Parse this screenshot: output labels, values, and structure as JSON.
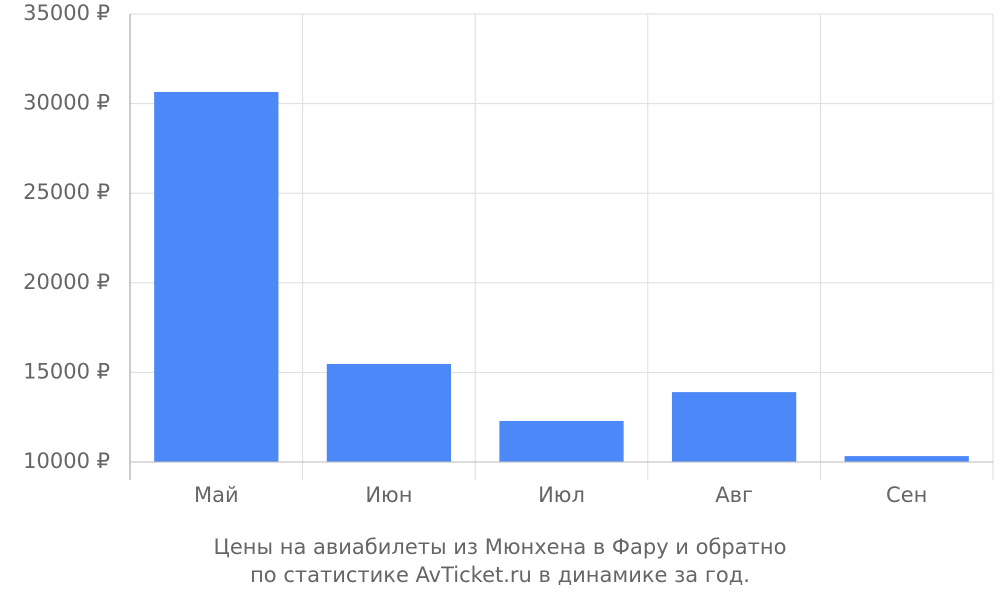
{
  "chart_data": {
    "type": "bar",
    "categories": [
      "Май",
      "Июн",
      "Июл",
      "Авг",
      "Сен"
    ],
    "values": [
      30650,
      15470,
      12290,
      13900,
      10330
    ],
    "color": "#4d88f9",
    "ylim": [
      10000,
      35000
    ],
    "yticks": [
      {
        "value": 10000,
        "label": "10000 ₽"
      },
      {
        "value": 15000,
        "label": "15000 ₽"
      },
      {
        "value": 20000,
        "label": "20000 ₽"
      },
      {
        "value": 25000,
        "label": "25000 ₽"
      },
      {
        "value": 30000,
        "label": "30000 ₽"
      },
      {
        "value": 35000,
        "label": "35000 ₽"
      }
    ],
    "grid": true,
    "caption": [
      "Цены на авиабилеты из Мюнхена в Фару и обратно",
      "по статистике AvTicket.ru в динамике за год."
    ]
  }
}
